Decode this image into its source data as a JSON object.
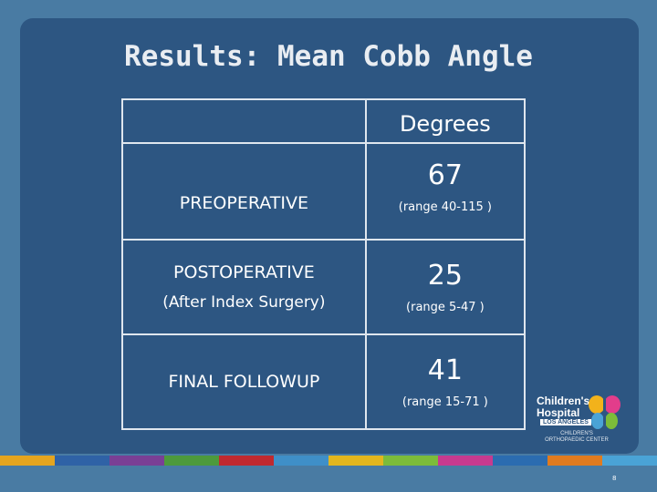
{
  "slide": {
    "title": "Results: Mean Cobb Angle",
    "table": {
      "header": {
        "label": "",
        "value": "Degrees"
      },
      "rows": [
        {
          "label": "PREOPERATIVE",
          "sublabel": "",
          "value": "67",
          "range": "(range 40-115 )"
        },
        {
          "label": "POSTOPERATIVE",
          "sublabel": "(After Index Surgery)",
          "value": "25",
          "range": "(range 5-47 )"
        },
        {
          "label": "FINAL FOLLOWUP",
          "sublabel": "",
          "value": "41",
          "range": "(range 15-71 )"
        }
      ]
    },
    "logo": {
      "line1": "Children's",
      "line2": "Hospital",
      "line3": "LOS ANGELES",
      "line4": "CHILDREN'S",
      "line5": "ORTHOPAEDIC CENTER"
    },
    "page_number": "8",
    "strip_colors": [
      "#e5a51f",
      "#2f62a6",
      "#7a3f95",
      "#4d9a3c",
      "#c0292f",
      "#3f8fc8",
      "#e3b61e",
      "#7cbc3a",
      "#c73a8f",
      "#2b6cb0",
      "#e07b1f",
      "#4aa3d6"
    ]
  }
}
